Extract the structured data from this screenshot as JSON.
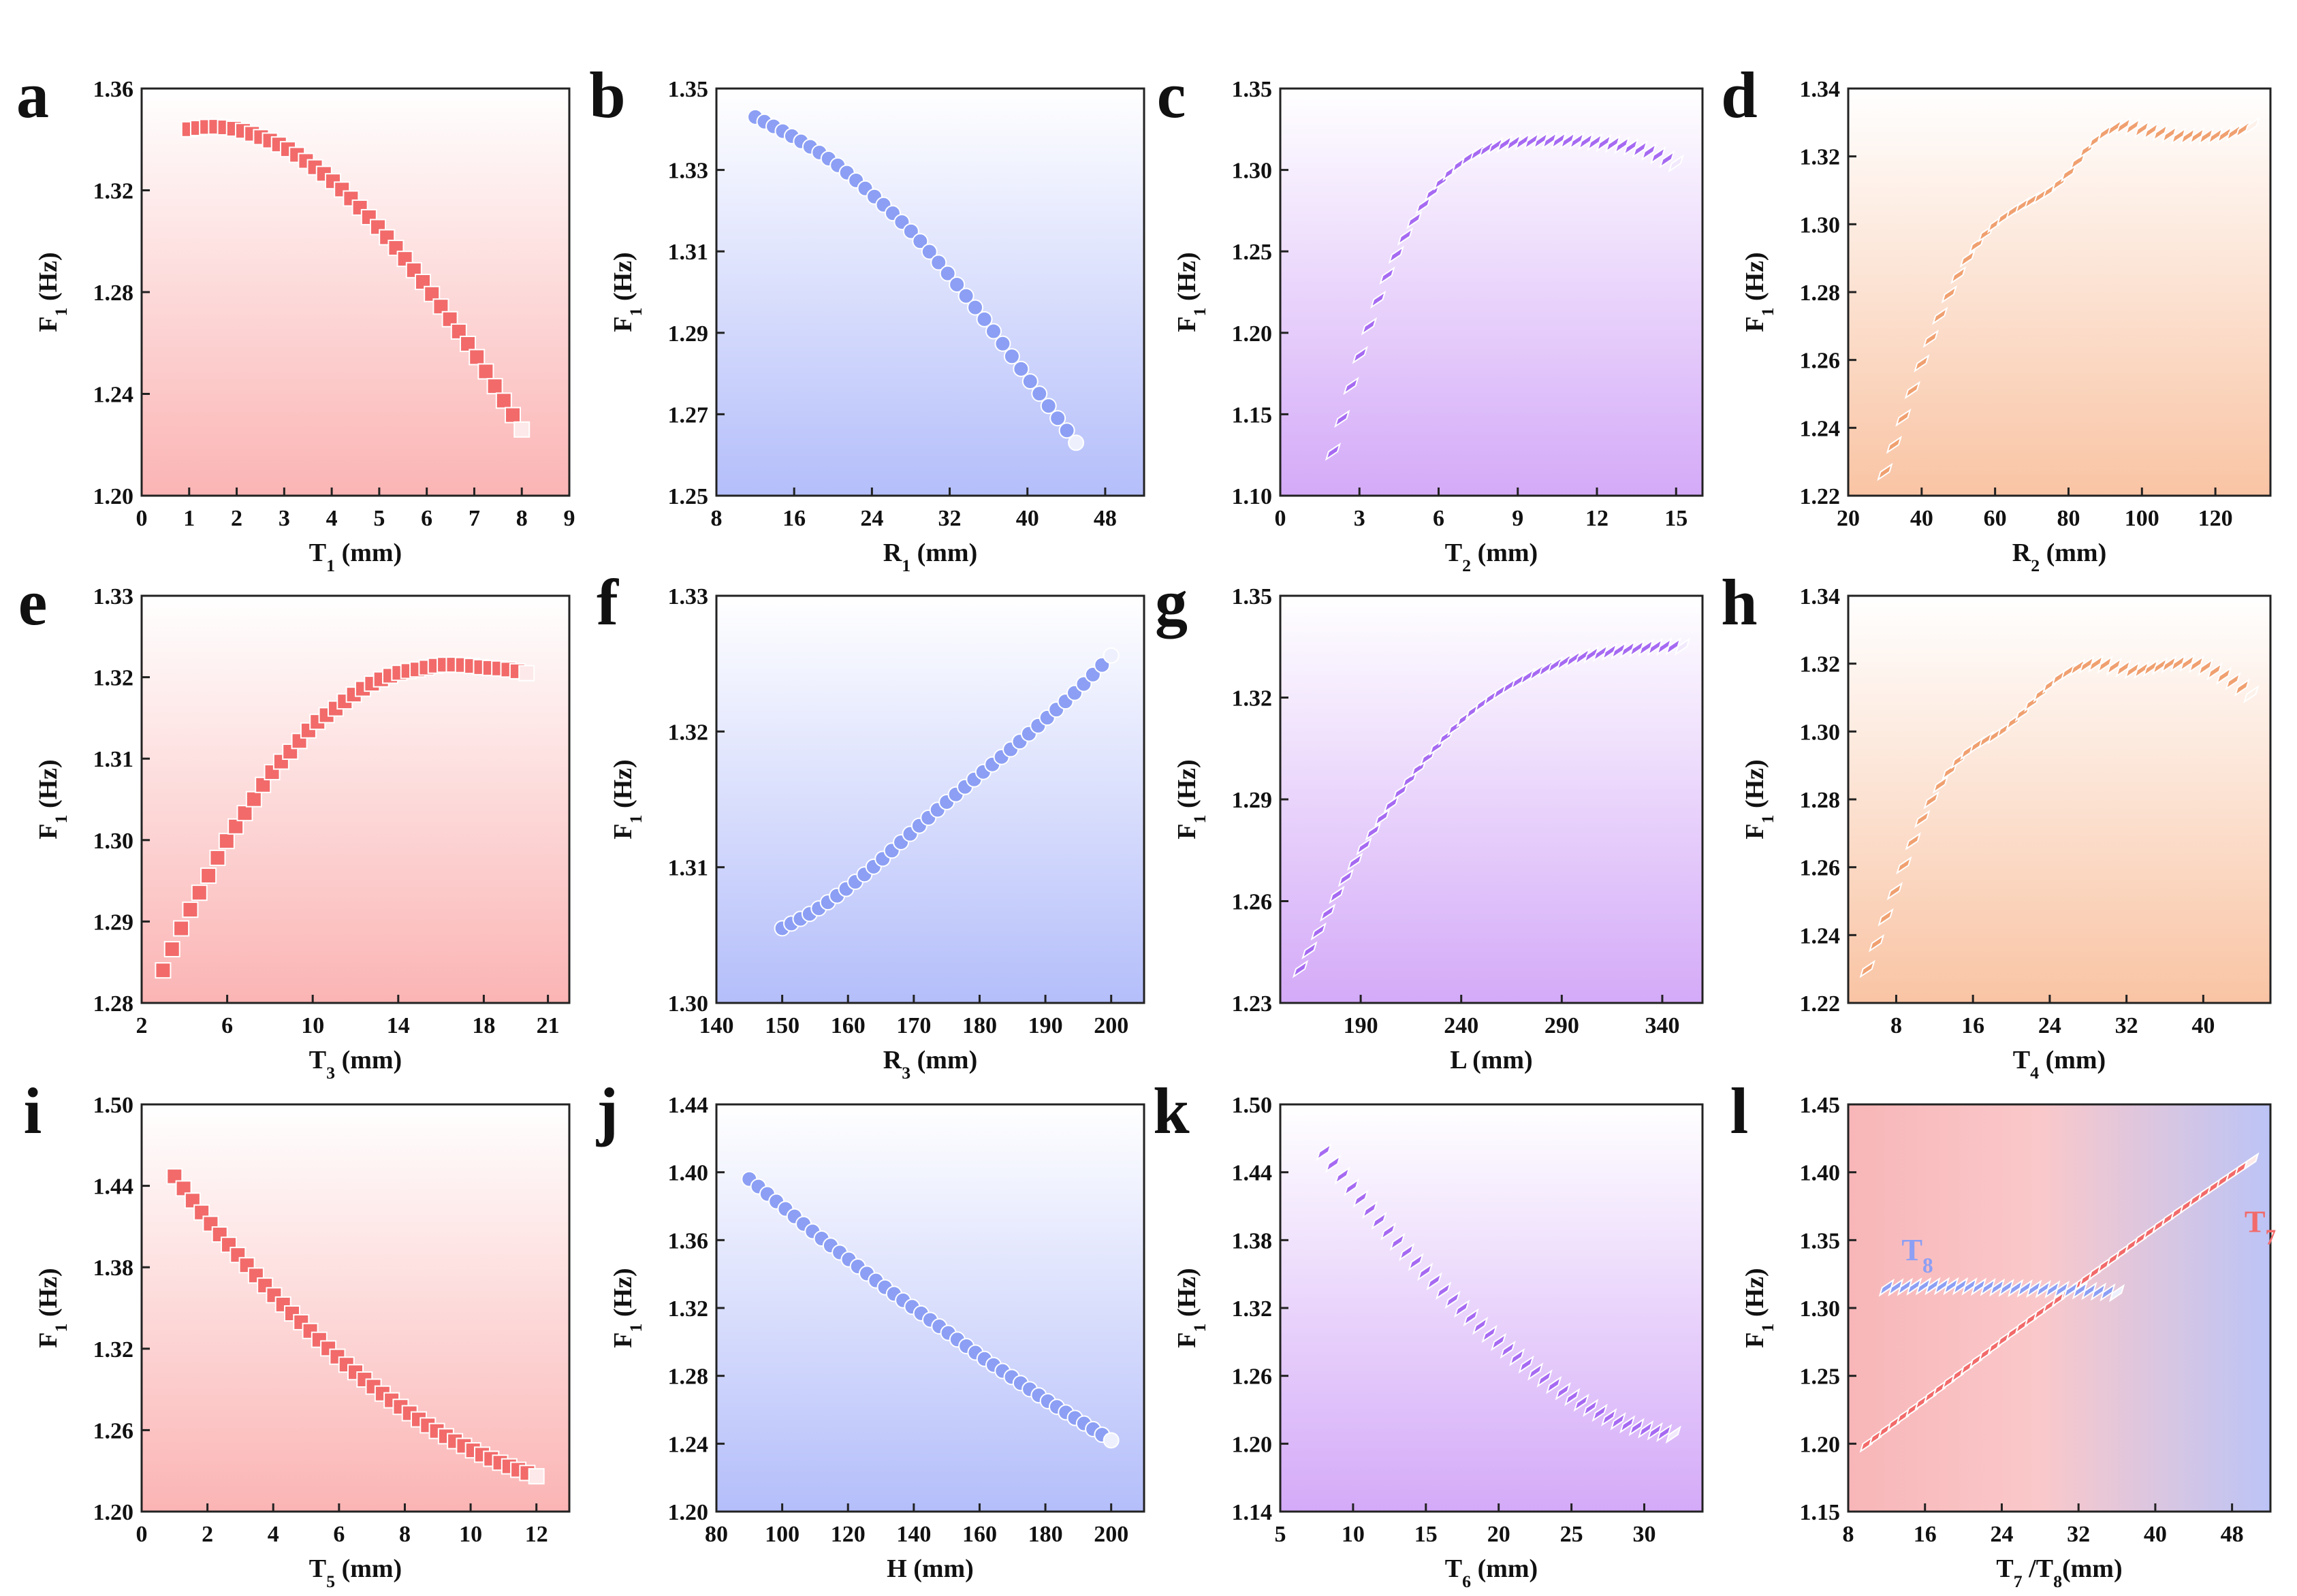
{
  "figure": {
    "label": "Twelve panels: first natural frequency F1 versus structural parameters"
  },
  "chart_data": [
    {
      "type": "scatter",
      "panel": "a",
      "title": "",
      "xlabel": "T1 (mm)",
      "xlabel_base": "T",
      "xlabel_sub": "1",
      "xlabel_unit": " (mm)",
      "ylabel": "F1 (Hz)",
      "xlim": [
        0,
        9
      ],
      "ylim": [
        1.2,
        1.36
      ],
      "xticks": [
        0,
        1,
        2,
        3,
        4,
        5,
        6,
        7,
        8,
        9
      ],
      "xtick_labels": [
        "0",
        "1",
        "2",
        "3",
        "4",
        "5",
        "6",
        "7",
        "8",
        "9"
      ],
      "yticks": [
        1.2,
        1.24,
        1.28,
        1.32,
        1.36
      ],
      "ytick_labels": [
        "1.20",
        "1.24",
        "1.28",
        "1.32",
        "1.36"
      ],
      "color": "#f26a6a",
      "marker": "square",
      "bg": [
        "#ffffff",
        "#fbb4b4"
      ],
      "series": [
        {
          "name": "T1",
          "x": [
            1.0,
            1.5,
            2.0,
            2.5,
            3.0,
            3.5,
            4.0,
            4.5,
            5.0,
            5.5,
            6.0,
            6.5,
            7.0,
            7.5,
            8.0
          ],
          "y": [
            1.344,
            1.345,
            1.344,
            1.341,
            1.337,
            1.331,
            1.324,
            1.315,
            1.305,
            1.294,
            1.282,
            1.269,
            1.256,
            1.241,
            1.226
          ]
        }
      ]
    },
    {
      "type": "scatter",
      "panel": "b",
      "xlabel": "R1 (mm)",
      "xlabel_base": "R",
      "xlabel_sub": "1",
      "xlabel_unit": " (mm)",
      "ylabel": "F1 (Hz)",
      "xlim": [
        8,
        52
      ],
      "ylim": [
        1.25,
        1.35
      ],
      "xticks": [
        8,
        16,
        24,
        32,
        40,
        48
      ],
      "xtick_labels": [
        "8",
        "16",
        "24",
        "32",
        "40",
        "48"
      ],
      "yticks": [
        1.25,
        1.27,
        1.29,
        1.31,
        1.33,
        1.35
      ],
      "ytick_labels": [
        "1.25",
        "1.27",
        "1.29",
        "1.31",
        "1.33",
        "1.35"
      ],
      "color": "#8c9ff4",
      "marker": "circle",
      "bg": [
        "#ffffff",
        "#b4befa"
      ],
      "series": [
        {
          "name": "R1",
          "x": [
            12,
            16,
            20,
            24,
            28,
            32,
            36,
            40,
            45
          ],
          "y": [
            1.343,
            1.338,
            1.332,
            1.324,
            1.315,
            1.304,
            1.292,
            1.279,
            1.263
          ]
        }
      ]
    },
    {
      "type": "scatter",
      "panel": "c",
      "xlabel": "T2 (mm)",
      "xlabel_base": "T",
      "xlabel_sub": "2",
      "xlabel_unit": " (mm)",
      "ylabel": "F1 (Hz)",
      "xlim": [
        0,
        16
      ],
      "ylim": [
        1.1,
        1.35
      ],
      "xticks": [
        0,
        3,
        6,
        9,
        12,
        15
      ],
      "xtick_labels": [
        "0",
        "3",
        "6",
        "9",
        "12",
        "15"
      ],
      "yticks": [
        1.1,
        1.15,
        1.2,
        1.25,
        1.3,
        1.35
      ],
      "ytick_labels": [
        "1.10",
        "1.15",
        "1.20",
        "1.25",
        "1.30",
        "1.35"
      ],
      "color": "#a66af2",
      "marker": "diamond",
      "bg": [
        "#ffffff",
        "#d4aaf8"
      ],
      "series": [
        {
          "name": "T2",
          "x": [
            2,
            3,
            4,
            5,
            6,
            7,
            8,
            9,
            10,
            11,
            12,
            13,
            14,
            15
          ],
          "y": [
            1.127,
            1.185,
            1.233,
            1.267,
            1.291,
            1.306,
            1.314,
            1.317,
            1.318,
            1.318,
            1.317,
            1.315,
            1.311,
            1.304
          ]
        }
      ]
    },
    {
      "type": "scatter",
      "panel": "d",
      "xlabel": "R2 (mm)",
      "xlabel_base": "R",
      "xlabel_sub": "2",
      "xlabel_unit": " (mm)",
      "ylabel": "F1 (Hz)",
      "xlim": [
        20,
        135
      ],
      "ylim": [
        1.22,
        1.34
      ],
      "xticks": [
        20,
        40,
        60,
        80,
        100,
        120
      ],
      "xtick_labels": [
        "20",
        "40",
        "60",
        "80",
        "100",
        "120"
      ],
      "yticks": [
        1.22,
        1.24,
        1.26,
        1.28,
        1.3,
        1.32,
        1.34
      ],
      "ytick_labels": [
        "1.22",
        "1.24",
        "1.26",
        "1.28",
        "1.30",
        "1.32",
        "1.34"
      ],
      "color": "#f0a070",
      "marker": "diamond",
      "bg": [
        "#ffffff",
        "#f9c4a4"
      ],
      "series": [
        {
          "name": "R2",
          "x": [
            30,
            35,
            40,
            45,
            50,
            55,
            60,
            65,
            70,
            75,
            80,
            85,
            90,
            95,
            100,
            105,
            110,
            115,
            120,
            125,
            130
          ],
          "y": [
            1.227,
            1.243,
            1.259,
            1.273,
            1.285,
            1.294,
            1.3,
            1.304,
            1.307,
            1.31,
            1.315,
            1.322,
            1.327,
            1.329,
            1.328,
            1.327,
            1.326,
            1.326,
            1.326,
            1.327,
            1.329
          ]
        }
      ]
    },
    {
      "type": "scatter",
      "panel": "e",
      "xlabel": "T3 (mm)",
      "xlabel_base": "T",
      "xlabel_sub": "3",
      "xlabel_unit": " (mm)",
      "ylabel": "F1 (Hz)",
      "xlim": [
        2,
        22
      ],
      "ylim": [
        1.28,
        1.33
      ],
      "xticks": [
        2,
        6,
        10,
        14,
        18,
        21
      ],
      "xtick_labels": [
        "2",
        "6",
        "10",
        "14",
        "18",
        "21"
      ],
      "yticks": [
        1.28,
        1.29,
        1.3,
        1.31,
        1.32,
        1.33
      ],
      "ytick_labels": [
        "1.28",
        "1.29",
        "1.30",
        "1.31",
        "1.32",
        "1.33"
      ],
      "color": "#f26a6a",
      "marker": "square",
      "bg": [
        "#ffffff",
        "#fbb4b4"
      ],
      "series": [
        {
          "name": "T3",
          "x": [
            3,
            4,
            5,
            6,
            7,
            8,
            9,
            10,
            11,
            12,
            13,
            14,
            15,
            16,
            17,
            18,
            19,
            20
          ],
          "y": [
            1.284,
            1.29,
            1.295,
            1.3,
            1.304,
            1.308,
            1.311,
            1.314,
            1.316,
            1.318,
            1.3195,
            1.3205,
            1.321,
            1.3215,
            1.3215,
            1.3212,
            1.321,
            1.3205
          ]
        }
      ]
    },
    {
      "type": "scatter",
      "panel": "f",
      "xlabel": "R3 (mm)",
      "xlabel_base": "R",
      "xlabel_sub": "3",
      "xlabel_unit": " (mm)",
      "ylabel": "F1 (Hz)",
      "xlim": [
        140,
        205
      ],
      "ylim": [
        1.3,
        1.33
      ],
      "xticks": [
        140,
        150,
        160,
        170,
        180,
        190,
        200
      ],
      "xtick_labels": [
        "140",
        "150",
        "160",
        "170",
        "180",
        "190",
        "200"
      ],
      "yticks": [
        1.3,
        1.31,
        1.32,
        1.33
      ],
      "ytick_labels": [
        "1.30",
        "1.31",
        "1.32",
        "1.33"
      ],
      "color": "#8c9ff4",
      "marker": "circle",
      "bg": [
        "#ffffff",
        "#b4befa"
      ],
      "series": [
        {
          "name": "R3",
          "x": [
            150,
            155,
            160,
            165,
            170,
            175,
            180,
            185,
            190,
            195,
            200
          ],
          "y": [
            1.3055,
            1.3068,
            1.3085,
            1.3105,
            1.3127,
            1.3148,
            1.3168,
            1.3188,
            1.3209,
            1.3231,
            1.3256
          ]
        }
      ]
    },
    {
      "type": "scatter",
      "panel": "g",
      "xlabel": "L (mm)",
      "xlabel_base": "L",
      "xlabel_sub": "",
      "xlabel_unit": " (mm)",
      "ylabel": "F1 (Hz)",
      "xlim": [
        150,
        360
      ],
      "ylim": [
        1.23,
        1.35
      ],
      "xticks": [
        190,
        240,
        290,
        340
      ],
      "xtick_labels": [
        "190",
        "240",
        "290",
        "340"
      ],
      "yticks": [
        1.23,
        1.26,
        1.29,
        1.32,
        1.35
      ],
      "ytick_labels": [
        "1.23",
        "1.26",
        "1.29",
        "1.32",
        "1.35"
      ],
      "color": "#a66af2",
      "marker": "diamond",
      "bg": [
        "#ffffff",
        "#d4aaf8"
      ],
      "series": [
        {
          "name": "L",
          "x": [
            160,
            180,
            200,
            220,
            240,
            260,
            280,
            300,
            320,
            340,
            350
          ],
          "y": [
            1.24,
            1.264,
            1.284,
            1.3,
            1.313,
            1.322,
            1.328,
            1.332,
            1.334,
            1.335,
            1.335
          ]
        }
      ]
    },
    {
      "type": "scatter",
      "panel": "h",
      "xlabel": "T4 (mm)",
      "xlabel_base": "T",
      "xlabel_sub": "4",
      "xlabel_unit": " (mm)",
      "ylabel": "F1 (Hz)",
      "xlim": [
        3,
        47
      ],
      "ylim": [
        1.22,
        1.34
      ],
      "xticks": [
        8,
        16,
        24,
        32,
        40
      ],
      "xtick_labels": [
        "8",
        "16",
        "24",
        "32",
        "40"
      ],
      "yticks": [
        1.22,
        1.24,
        1.26,
        1.28,
        1.3,
        1.32,
        1.34
      ],
      "ytick_labels": [
        "1.22",
        "1.24",
        "1.26",
        "1.28",
        "1.30",
        "1.32",
        "1.34"
      ],
      "color": "#f0a070",
      "marker": "diamond",
      "bg": [
        "#ffffff",
        "#f9c4a4"
      ],
      "series": [
        {
          "name": "T4",
          "x": [
            5,
            7,
            9,
            11,
            13,
            15,
            17,
            19,
            21,
            23,
            25,
            27,
            29,
            31,
            33,
            35,
            37,
            39,
            41,
            43,
            45
          ],
          "y": [
            1.23,
            1.246,
            1.262,
            1.276,
            1.286,
            1.293,
            1.297,
            1.3,
            1.305,
            1.311,
            1.316,
            1.319,
            1.32,
            1.319,
            1.318,
            1.319,
            1.32,
            1.32,
            1.318,
            1.315,
            1.311
          ]
        }
      ]
    },
    {
      "type": "scatter",
      "panel": "i",
      "xlabel": "T5 (mm)",
      "xlabel_base": "T",
      "xlabel_sub": "5",
      "xlabel_unit": " (mm)",
      "ylabel": "F1 (Hz)",
      "xlim": [
        0,
        13
      ],
      "ylim": [
        1.2,
        1.5
      ],
      "xticks": [
        0,
        2,
        4,
        6,
        8,
        10,
        12
      ],
      "xtick_labels": [
        "0",
        "2",
        "4",
        "6",
        "8",
        "10",
        "12"
      ],
      "yticks": [
        1.2,
        1.26,
        1.32,
        1.38,
        1.44,
        1.5
      ],
      "ytick_labels": [
        "1.20",
        "1.26",
        "1.32",
        "1.38",
        "1.44",
        "1.50"
      ],
      "color": "#f26a6a",
      "marker": "square",
      "bg": [
        "#ffffff",
        "#fbb4b4"
      ],
      "series": [
        {
          "name": "T5",
          "x": [
            1,
            2,
            3,
            4,
            5,
            6,
            7,
            8,
            9,
            10,
            11,
            12
          ],
          "y": [
            1.447,
            1.415,
            1.387,
            1.36,
            1.336,
            1.313,
            1.293,
            1.275,
            1.259,
            1.246,
            1.235,
            1.226
          ]
        }
      ]
    },
    {
      "type": "scatter",
      "panel": "j",
      "xlabel": "H (mm)",
      "xlabel_base": "H",
      "xlabel_sub": "",
      "xlabel_unit": " (mm)",
      "ylabel": "F1 (Hz)",
      "xlim": [
        80,
        210
      ],
      "ylim": [
        1.2,
        1.44
      ],
      "xticks": [
        80,
        100,
        120,
        140,
        160,
        180,
        200
      ],
      "xtick_labels": [
        "80",
        "100",
        "120",
        "140",
        "160",
        "180",
        "200"
      ],
      "yticks": [
        1.2,
        1.24,
        1.28,
        1.32,
        1.36,
        1.4,
        1.44
      ],
      "ytick_labels": [
        "1.20",
        "1.24",
        "1.28",
        "1.32",
        "1.36",
        "1.40",
        "1.44"
      ],
      "color": "#8c9ff4",
      "marker": "circle",
      "bg": [
        "#ffffff",
        "#b4befa"
      ],
      "series": [
        {
          "name": "H",
          "x": [
            90,
            100,
            110,
            120,
            130,
            140,
            150,
            160,
            170,
            180,
            190,
            200
          ],
          "y": [
            1.396,
            1.38,
            1.364,
            1.349,
            1.334,
            1.32,
            1.306,
            1.292,
            1.279,
            1.266,
            1.254,
            1.242
          ]
        }
      ]
    },
    {
      "type": "scatter",
      "panel": "k",
      "xlabel": "T6 (mm)",
      "xlabel_base": "T",
      "xlabel_sub": "6",
      "xlabel_unit": " (mm)",
      "ylabel": "F1 (Hz)",
      "xlim": [
        5,
        34
      ],
      "ylim": [
        1.14,
        1.5
      ],
      "xticks": [
        5,
        10,
        15,
        20,
        25,
        30
      ],
      "xtick_labels": [
        "5",
        "10",
        "15",
        "20",
        "25",
        "30"
      ],
      "yticks": [
        1.14,
        1.2,
        1.26,
        1.32,
        1.38,
        1.44,
        1.5
      ],
      "ytick_labels": [
        "1.14",
        "1.20",
        "1.26",
        "1.32",
        "1.38",
        "1.44",
        "1.50"
      ],
      "color": "#a66af2",
      "marker": "diamond",
      "bg": [
        "#ffffff",
        "#d4aaf8"
      ],
      "series": [
        {
          "name": "T6",
          "x": [
            8,
            10,
            12,
            14,
            16,
            18,
            20,
            22,
            24,
            26,
            28,
            30,
            32
          ],
          "y": [
            1.458,
            1.425,
            1.394,
            1.365,
            1.338,
            1.313,
            1.29,
            1.269,
            1.25,
            1.234,
            1.221,
            1.213,
            1.208
          ]
        }
      ]
    },
    {
      "type": "scatter",
      "panel": "l",
      "xlabel": "T7 /T8(mm)",
      "xlabel_base": "T",
      "xlabel_sub": "7",
      "xlabel_mid": " /T",
      "xlabel_sub2": "8",
      "xlabel_unit": "(mm)",
      "ylabel": "F1 (Hz)",
      "xlim": [
        8,
        52
      ],
      "ylim": [
        1.15,
        1.45
      ],
      "xticks": [
        8,
        16,
        24,
        32,
        40,
        48
      ],
      "xtick_labels": [
        "8",
        "16",
        "24",
        "32",
        "40",
        "48"
      ],
      "yticks": [
        1.15,
        1.2,
        1.25,
        1.3,
        1.35,
        1.4,
        1.45
      ],
      "ytick_labels": [
        "1.15",
        "1.20",
        "1.25",
        "1.30",
        "1.35",
        "1.40",
        "1.45"
      ],
      "bg_horizontal": [
        "#f8b6b8",
        "#bcc4f6"
      ],
      "series": [
        {
          "name": "T7",
          "label_base": "T",
          "label_sub": "7",
          "color": "#f26a6a",
          "marker": "diamond",
          "x": [
            10,
            15,
            20,
            25,
            30,
            35,
            40,
            45,
            50
          ],
          "y": [
            1.2,
            1.227,
            1.254,
            1.281,
            1.307,
            1.333,
            1.359,
            1.384,
            1.408
          ]
        },
        {
          "name": "T8",
          "label_base": "T",
          "label_sub": "8",
          "color": "#8c9ff4",
          "marker": "diamond",
          "x": [
            12,
            16,
            20,
            24,
            28,
            32,
            36
          ],
          "y": [
            1.315,
            1.316,
            1.316,
            1.315,
            1.314,
            1.313,
            1.311
          ]
        }
      ]
    }
  ]
}
